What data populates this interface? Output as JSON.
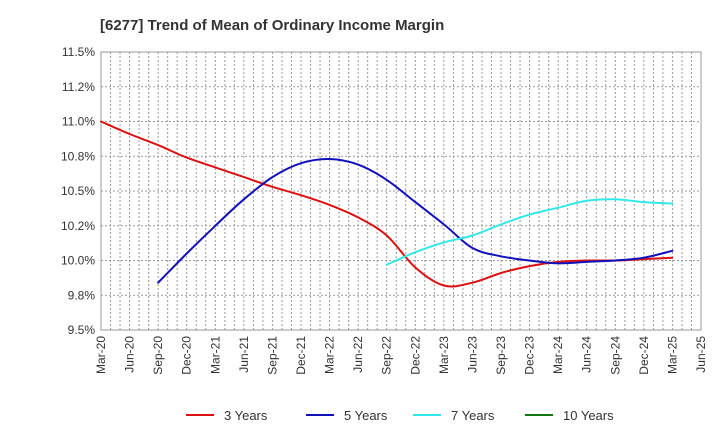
{
  "chart_data": {
    "type": "line",
    "title": "[6277]  Trend of Mean of Ordinary Income Margin",
    "xlabel": "",
    "ylabel": "",
    "x": [
      "Mar-20",
      "Jun-20",
      "Sep-20",
      "Dec-20",
      "Mar-21",
      "Jun-21",
      "Sep-21",
      "Dec-21",
      "Mar-22",
      "Jun-22",
      "Sep-22",
      "Dec-22",
      "Mar-23",
      "Jun-23",
      "Sep-23",
      "Dec-23",
      "Mar-24",
      "Jun-24",
      "Sep-24",
      "Dec-24",
      "Mar-25",
      "Jun-25"
    ],
    "yticks": [
      "9.5%",
      "9.8%",
      "10.0%",
      "10.2%",
      "10.5%",
      "10.8%",
      "11.0%",
      "11.2%",
      "11.5%"
    ],
    "ylim": [
      9.5,
      11.5
    ],
    "grid": true,
    "legend_position": "bottom",
    "series": [
      {
        "name": "3 Years",
        "color": "#dd1111",
        "values": [
          11.0,
          10.91,
          10.83,
          10.74,
          10.67,
          10.6,
          10.53,
          10.47,
          10.4,
          10.31,
          10.18,
          9.95,
          9.82,
          9.84,
          9.91,
          9.96,
          9.99,
          10.0,
          10.0,
          10.01,
          10.02,
          null
        ]
      },
      {
        "name": "5 Years",
        "color": "#1111bb",
        "values": [
          null,
          null,
          9.84,
          10.05,
          10.25,
          10.44,
          10.6,
          10.7,
          10.73,
          10.69,
          10.58,
          10.42,
          10.26,
          10.09,
          10.03,
          10.0,
          9.98,
          9.99,
          10.0,
          10.02,
          10.07,
          null
        ]
      },
      {
        "name": "7 Years",
        "color": "#33e8e8",
        "values": [
          null,
          null,
          null,
          null,
          null,
          null,
          null,
          null,
          null,
          null,
          9.97,
          10.06,
          10.13,
          10.18,
          10.26,
          10.33,
          10.38,
          10.43,
          10.44,
          10.42,
          10.41,
          null
        ]
      },
      {
        "name": "10 Years",
        "color": "#117711",
        "values": [
          null,
          null,
          null,
          null,
          null,
          null,
          null,
          null,
          null,
          null,
          null,
          null,
          null,
          null,
          null,
          null,
          null,
          null,
          null,
          null,
          null,
          null
        ]
      }
    ]
  }
}
